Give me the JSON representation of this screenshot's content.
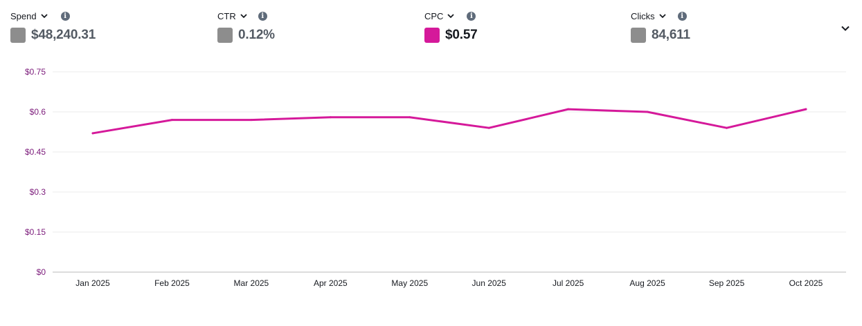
{
  "metrics": [
    {
      "label": "Spend",
      "value": "$48,240.31",
      "swatch_color": "#8d8d8d",
      "active": false
    },
    {
      "label": "CTR",
      "value": "0.12%",
      "swatch_color": "#8d8d8d",
      "active": false
    },
    {
      "label": "CPC",
      "value": "$0.57",
      "swatch_color": "#d5199a",
      "active": true
    },
    {
      "label": "Clicks",
      "value": "84,611",
      "swatch_color": "#8d8d8d",
      "active": false
    }
  ],
  "icons": {
    "dropdown": "chevron-down-icon",
    "info": "info-icon",
    "collapse": "chevron-down-icon"
  },
  "info_glyph": "i",
  "chart_data": {
    "type": "line",
    "title": "",
    "xlabel": "",
    "ylabel": "",
    "categories": [
      "Jan 2025",
      "Feb 2025",
      "Mar 2025",
      "Apr 2025",
      "May 2025",
      "Jun 2025",
      "Jul 2025",
      "Aug 2025",
      "Sep 2025",
      "Oct 2025"
    ],
    "series": [
      {
        "name": "CPC",
        "color": "#d5199a",
        "values": [
          0.52,
          0.57,
          0.57,
          0.58,
          0.58,
          0.54,
          0.61,
          0.6,
          0.54,
          0.61
        ]
      }
    ],
    "y_ticks": [
      0,
      0.15,
      0.3,
      0.45,
      0.6,
      0.75
    ],
    "y_tick_labels": [
      "$0",
      "$0.15",
      "$0.3",
      "$0.45",
      "$0.6",
      "$0.75"
    ],
    "ylim": [
      0,
      0.75
    ],
    "grid": true,
    "legend": "none"
  }
}
